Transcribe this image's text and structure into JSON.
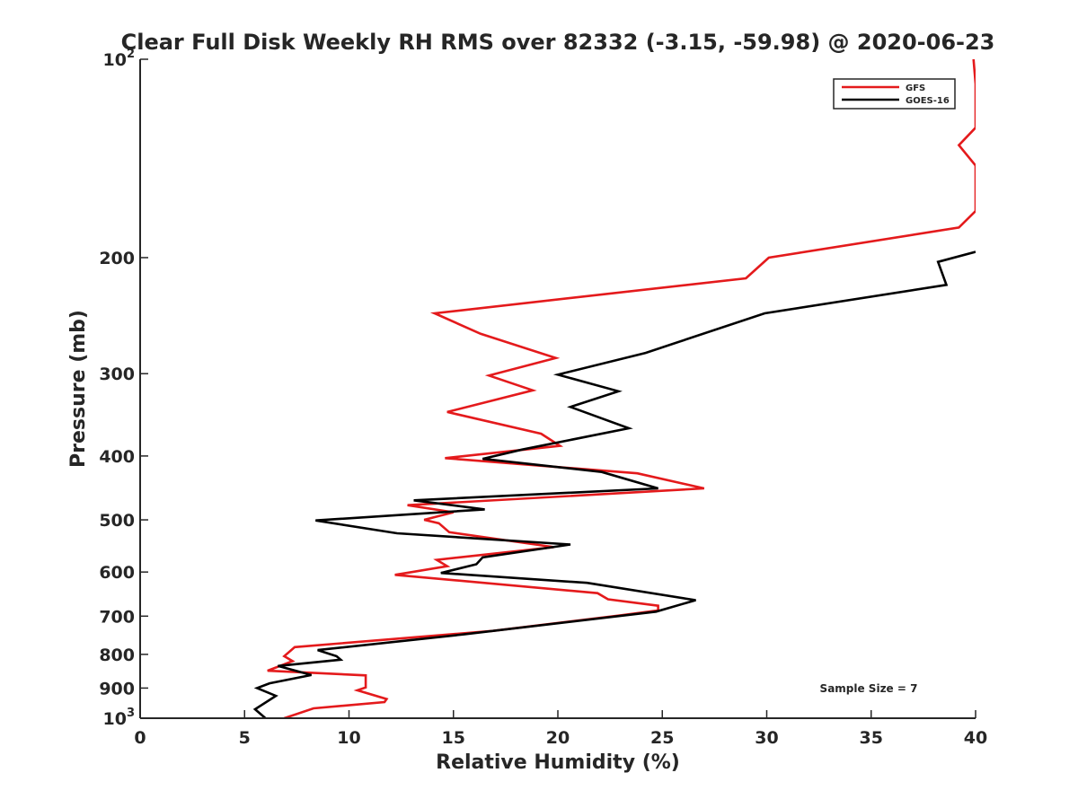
{
  "chart_data": {
    "type": "line",
    "title": "Clear Full Disk Weekly RH RMS over 82332 (-3.15, -59.98) @ 2020-06-23",
    "xlabel": "Relative Humidity (%)",
    "ylabel": "Pressure (mb)",
    "xlim": [
      0,
      40
    ],
    "ylim": [
      1000,
      100
    ],
    "y_scale": "log",
    "y_reversed": true,
    "grid": false,
    "legend_position": "top-right",
    "annotation": "Sample Size = 7",
    "x_ticks": [
      {
        "value": 0,
        "label": "0"
      },
      {
        "value": 5,
        "label": "5"
      },
      {
        "value": 10,
        "label": "10"
      },
      {
        "value": 15,
        "label": "15"
      },
      {
        "value": 20,
        "label": "20"
      },
      {
        "value": 25,
        "label": "25"
      },
      {
        "value": 30,
        "label": "30"
      },
      {
        "value": 35,
        "label": "35"
      },
      {
        "value": 40,
        "label": "40"
      }
    ],
    "y_ticks": [
      {
        "value": 100,
        "base": "10",
        "sup": "2"
      },
      {
        "value": 200,
        "label": "200"
      },
      {
        "value": 300,
        "label": "300"
      },
      {
        "value": 400,
        "label": "400"
      },
      {
        "value": 500,
        "label": "500"
      },
      {
        "value": 600,
        "label": "600"
      },
      {
        "value": 700,
        "label": "700"
      },
      {
        "value": 800,
        "label": "800"
      },
      {
        "value": 900,
        "label": "900"
      },
      {
        "value": 1000,
        "base": "10",
        "sup": "3"
      }
    ],
    "series": [
      {
        "name": "GFS",
        "color": "#e41a1c",
        "points": [
          [
            39.9,
            100
          ],
          [
            40.0,
            109
          ],
          [
            40.0,
            127
          ],
          [
            39.2,
            135
          ],
          [
            40.0,
            145
          ],
          [
            40.0,
            170
          ],
          [
            39.2,
            180
          ],
          [
            30.1,
            200
          ],
          [
            29.0,
            215
          ],
          [
            14.1,
            243
          ],
          [
            16.3,
            261
          ],
          [
            19.9,
            284
          ],
          [
            16.7,
            302
          ],
          [
            18.8,
            318
          ],
          [
            14.7,
            343
          ],
          [
            19.2,
            370
          ],
          [
            20.1,
            386
          ],
          [
            14.6,
            403
          ],
          [
            23.8,
            425
          ],
          [
            27.0,
            448
          ],
          [
            12.8,
            475
          ],
          [
            15.0,
            487
          ],
          [
            13.6,
            500
          ],
          [
            14.3,
            506
          ],
          [
            14.8,
            522
          ],
          [
            19.8,
            550
          ],
          [
            14.2,
            575
          ],
          [
            14.7,
            588
          ],
          [
            12.2,
            606
          ],
          [
            21.9,
            646
          ],
          [
            22.4,
            660
          ],
          [
            24.8,
            675
          ],
          [
            24.8,
            686
          ],
          [
            23.0,
            698
          ],
          [
            16.9,
            737
          ],
          [
            7.4,
            780
          ],
          [
            6.9,
            805
          ],
          [
            7.3,
            819
          ],
          [
            6.1,
            847
          ],
          [
            10.8,
            861
          ],
          [
            10.8,
            898
          ],
          [
            10.4,
            907
          ],
          [
            11.8,
            935
          ],
          [
            11.7,
            945
          ],
          [
            8.3,
            966
          ],
          [
            6.9,
            1000
          ]
        ]
      },
      {
        "name": "GOES-16",
        "color": "#000000",
        "points": [
          [
            40.0,
            196
          ],
          [
            38.2,
            203
          ],
          [
            38.6,
            220
          ],
          [
            29.9,
            243
          ],
          [
            24.2,
            279
          ],
          [
            20.0,
            301
          ],
          [
            22.9,
            319
          ],
          [
            20.6,
            337
          ],
          [
            23.4,
            363
          ],
          [
            18.3,
            391
          ],
          [
            16.4,
            404
          ],
          [
            22.1,
            423
          ],
          [
            24.8,
            448
          ],
          [
            13.1,
            467
          ],
          [
            16.5,
            482
          ],
          [
            8.4,
            501
          ],
          [
            12.3,
            524
          ],
          [
            20.6,
            545
          ],
          [
            16.4,
            570
          ],
          [
            16.1,
            584
          ],
          [
            14.4,
            602
          ],
          [
            21.4,
            623
          ],
          [
            26.6,
            662
          ],
          [
            24.7,
            689
          ],
          [
            15.5,
            746
          ],
          [
            8.5,
            788
          ],
          [
            9.4,
            805
          ],
          [
            9.6,
            815
          ],
          [
            6.6,
            833
          ],
          [
            8.2,
            860
          ],
          [
            6.2,
            885
          ],
          [
            5.6,
            900
          ],
          [
            6.5,
            925
          ],
          [
            5.5,
            969
          ],
          [
            6.0,
            1000
          ]
        ]
      }
    ]
  }
}
